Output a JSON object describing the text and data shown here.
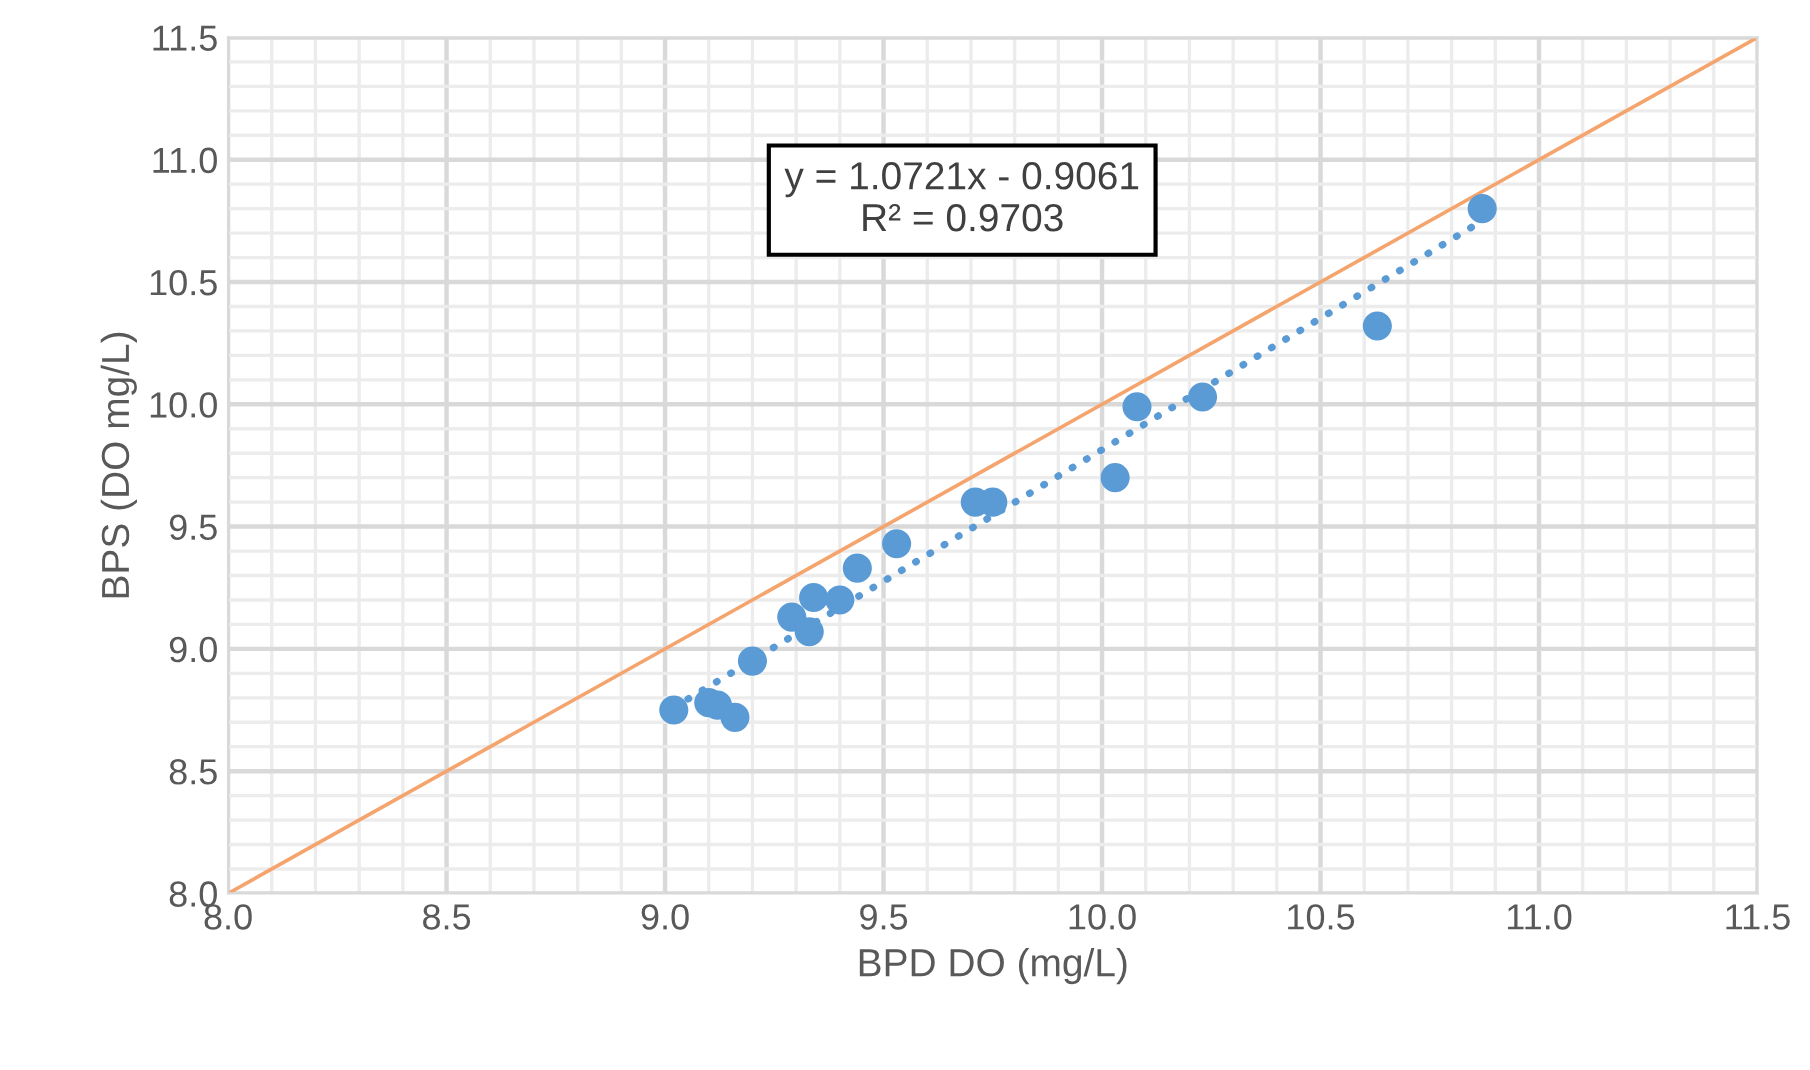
{
  "chart_data": {
    "type": "scatter",
    "xlabel": "BPD DO (mg/L)",
    "ylabel": "BPS (DO mg/L)",
    "xlim": [
      8.0,
      11.5
    ],
    "ylim": [
      8.0,
      11.5
    ],
    "xticks": [
      {
        "value": 8.0,
        "label": "8.0"
      },
      {
        "value": 8.5,
        "label": "8.5"
      },
      {
        "value": 9.0,
        "label": "9.0"
      },
      {
        "value": 9.5,
        "label": "9.5"
      },
      {
        "value": 10.0,
        "label": "10.0"
      },
      {
        "value": 10.5,
        "label": "10.5"
      },
      {
        "value": 11.0,
        "label": "11.0"
      },
      {
        "value": 11.5,
        "label": "11.5"
      }
    ],
    "yticks": [
      {
        "value": 8.0,
        "label": "8.0"
      },
      {
        "value": 8.5,
        "label": "8.5"
      },
      {
        "value": 9.0,
        "label": "9.0"
      },
      {
        "value": 9.5,
        "label": "9.5"
      },
      {
        "value": 10.0,
        "label": "10.0"
      },
      {
        "value": 10.5,
        "label": "10.5"
      },
      {
        "value": 11.0,
        "label": "11.0"
      },
      {
        "value": 11.5,
        "label": "11.5"
      }
    ],
    "grid": true,
    "legend": false,
    "annotations": [
      "y = 1.0721x - 0.9061\nR² = 0.9703"
    ],
    "series": [
      {
        "type": "line",
        "color": "#f4a46c",
        "x": [
          8.0,
          11.5
        ],
        "values": [
          8.0,
          11.5
        ],
        "line_style": "solid",
        "marker": "none"
      },
      {
        "type": "line",
        "color": "#5b9bd5",
        "x": [
          9.02,
          10.87
        ],
        "values": [
          8.76,
          10.75
        ],
        "line_style": "dotted",
        "marker": "none"
      },
      {
        "color": "#5b9bd5",
        "marker": "circle",
        "x": [
          9.02,
          9.1,
          9.12,
          9.16,
          9.2,
          9.29,
          9.33,
          9.34,
          9.4,
          9.44,
          9.53,
          9.71,
          9.75,
          10.03,
          10.08,
          10.23,
          10.63,
          10.87
        ],
        "values": [
          8.75,
          8.78,
          8.77,
          8.72,
          8.95,
          9.13,
          9.07,
          9.21,
          9.2,
          9.33,
          9.43,
          9.6,
          9.6,
          9.7,
          9.99,
          10.03,
          10.32,
          10.8
        ]
      }
    ]
  }
}
